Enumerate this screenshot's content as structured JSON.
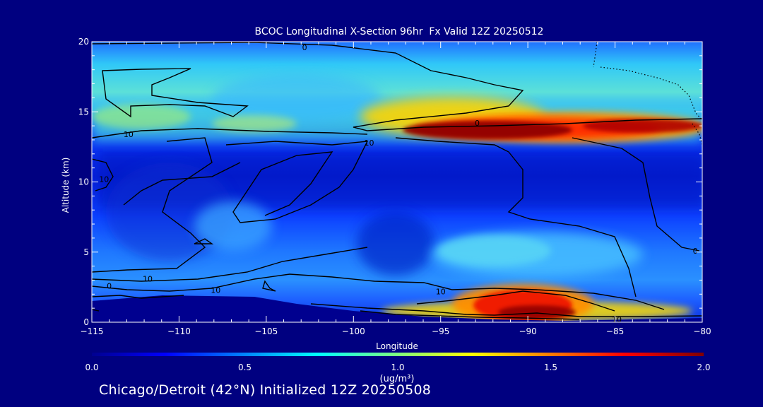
{
  "chart_data": {
    "type": "heatmap",
    "title": "BCOC Longitudinal X-Section 96hr  Fx Valid 12Z 20250512",
    "xlabel": "Longitude",
    "ylabel": "Altitude (km)",
    "xlim": [
      -115,
      -80
    ],
    "ylim": [
      0,
      20
    ],
    "x_ticks": [
      -115,
      -110,
      -105,
      -100,
      -95,
      -90,
      -85,
      -80
    ],
    "y_ticks": [
      0,
      5,
      10,
      15,
      20
    ],
    "x_tick_labels": [
      "−115",
      "−110",
      "−105",
      "−100",
      "−95",
      "−90",
      "−85",
      "−80"
    ],
    "y_tick_labels": [
      "0",
      "5",
      "10",
      "15",
      "20"
    ],
    "colorbar": {
      "min": 0.0,
      "max": 2.0,
      "ticks": [
        0.0,
        0.5,
        1.0,
        1.5,
        2.0
      ],
      "tick_labels": [
        "0.0",
        "0.5",
        "1.0",
        "1.5",
        "2.0"
      ],
      "unit_label": "(ug/m³)"
    },
    "contour_labels": [
      {
        "text": "0",
        "lon": -102.8,
        "alt": 19.6
      },
      {
        "text": "10",
        "lon": -112.9,
        "alt": 13.4
      },
      {
        "text": "10",
        "lon": -99.1,
        "alt": 12.8
      },
      {
        "text": "0",
        "lon": -92.9,
        "alt": 14.2
      },
      {
        "text": "10",
        "lon": -114.3,
        "alt": 10.2
      },
      {
        "text": "0",
        "lon": -80.4,
        "alt": 5.1
      },
      {
        "text": "10",
        "lon": -111.8,
        "alt": 3.1
      },
      {
        "text": "0",
        "lon": -114.0,
        "alt": 2.6
      },
      {
        "text": "10",
        "lon": -107.9,
        "alt": 2.3
      },
      {
        "text": "10",
        "lon": -95.0,
        "alt": 2.2
      },
      {
        "text": "10",
        "lon": -84.9,
        "alt": 0.2
      }
    ],
    "features": {
      "elevated_plume": {
        "lon_range": [
          -98,
          -80
        ],
        "alt_center": 13.9,
        "peak": 2.0
      },
      "surface_plume": {
        "lon_center": -90.5,
        "alt_range": [
          0,
          2.5
        ],
        "peak": 1.9
      }
    }
  },
  "footer": "Chicago/Detroit (42°N) Initialized 12Z 20250508"
}
